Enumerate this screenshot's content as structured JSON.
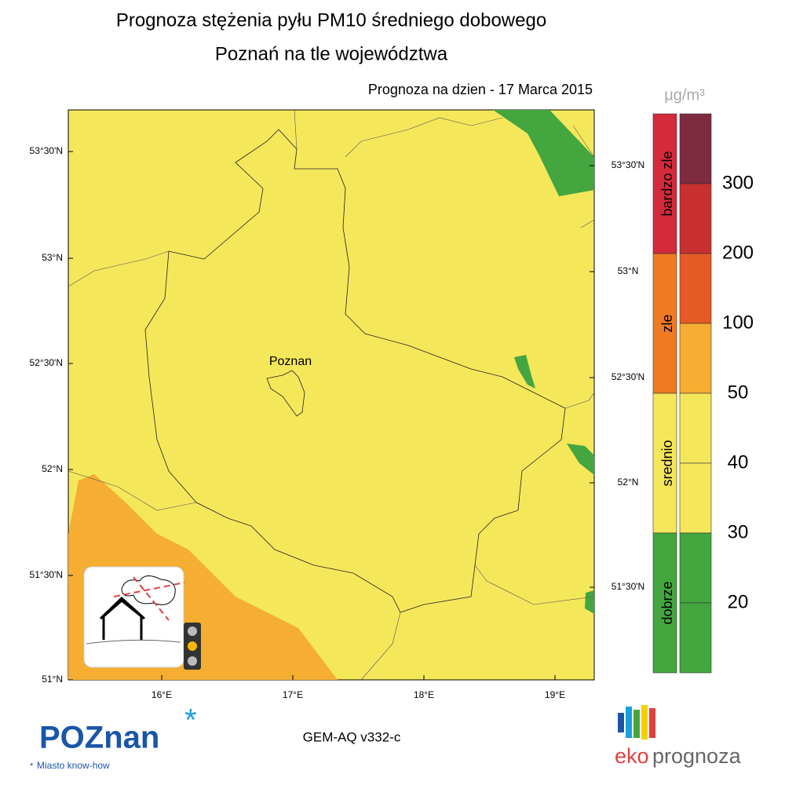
{
  "header": {
    "title": "Prognoza stężenia pyłu PM10 średniego dobowego",
    "subtitle": "Poznań na tle województwa",
    "date_label": "Prognoza na dzien -  17 Marca 2015"
  },
  "map": {
    "city_label": "Poznan",
    "lat_labels_left": [
      "53°30'N",
      "53°N",
      "52°30'N",
      "52°N",
      "51°30'N",
      "51°N"
    ],
    "lat_labels_right": [
      "53°30'N",
      "53°N",
      "52°30'N",
      "52°N",
      "51°30'N"
    ],
    "lon_labels": [
      "16°E",
      "17°E",
      "18°E",
      "19°E"
    ]
  },
  "legend": {
    "unit": "μg/m³",
    "categories": [
      {
        "label": "bardzo zle",
        "color": "#d42a3b"
      },
      {
        "label": "zle",
        "color": "#f07a22"
      },
      {
        "label": "srednio",
        "color": "#f5e75a"
      },
      {
        "label": "dobrze",
        "color": "#43a63f"
      }
    ],
    "level_colors": [
      "#7e2a40",
      "#c8302f",
      "#e65a25",
      "#f5ae31",
      "#f5e75a",
      "#f5e75a",
      "#43a63f",
      "#43a63f"
    ],
    "levels": [
      "300",
      "200",
      "100",
      "50",
      "40",
      "30",
      "20"
    ]
  },
  "footer": {
    "model": "GEM-AQ v332-c",
    "city_logo": "POZnan",
    "tagline": "Miasto know-how",
    "brand_a": "eko",
    "brand_b": "prognoza"
  }
}
